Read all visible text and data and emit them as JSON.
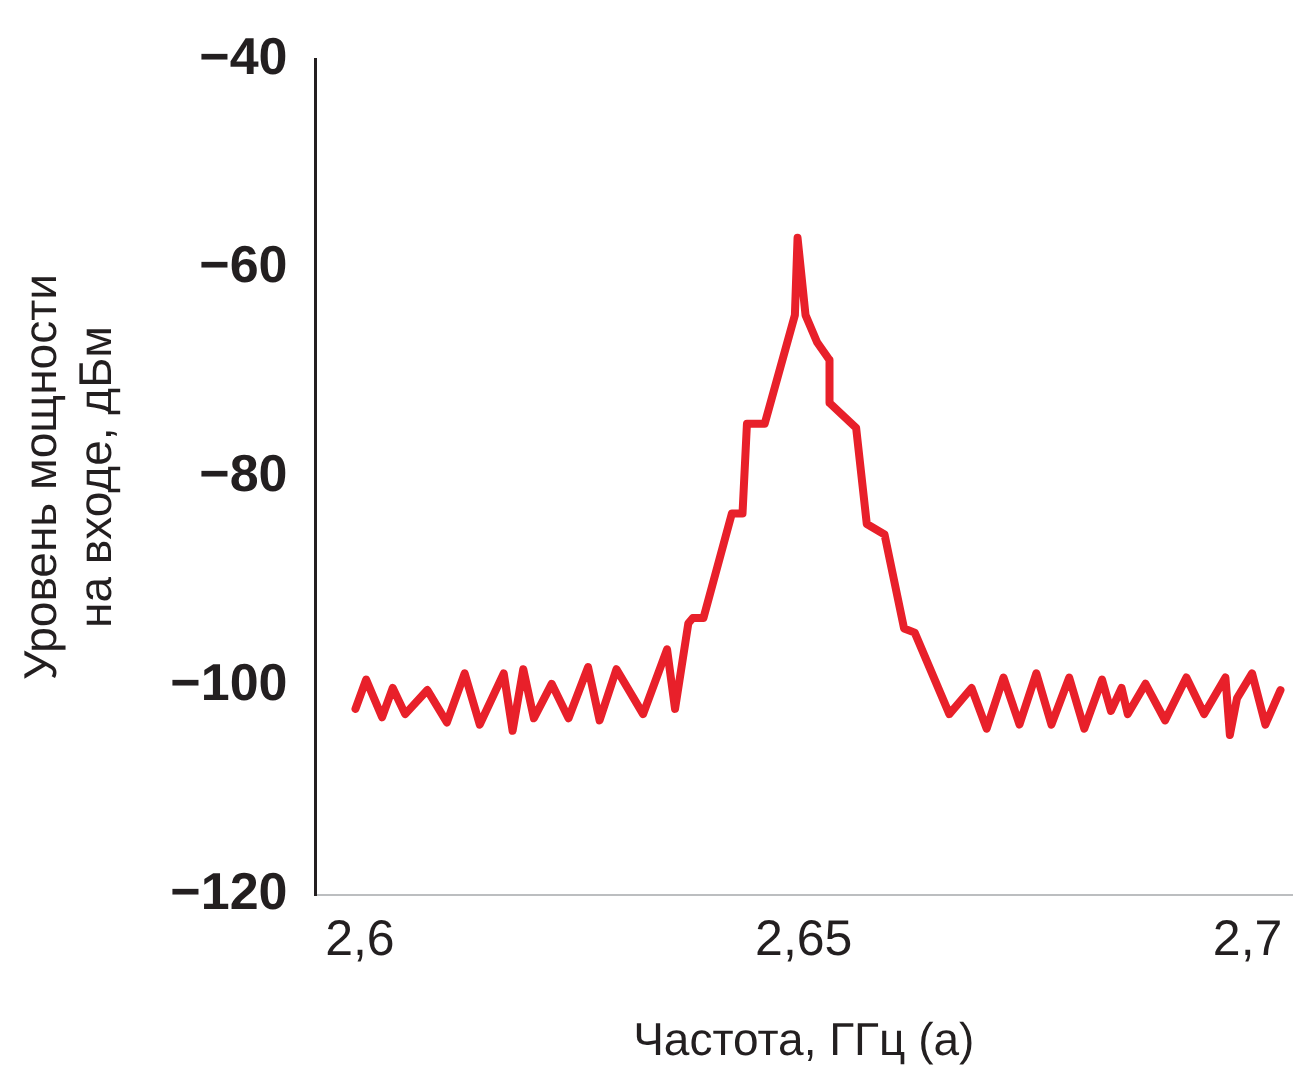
{
  "chart_data": {
    "type": "line",
    "xlabel": "Частота, ГГц (а)",
    "ylabel": "Уровень мощности\nна входе, дБм",
    "xlim": [
      2.595,
      2.705
    ],
    "ylim": [
      -120,
      -40
    ],
    "xticks": [
      {
        "value": 2.6,
        "label": "2,6"
      },
      {
        "value": 2.65,
        "label": "2,65"
      },
      {
        "value": 2.7,
        "label": "2,7"
      }
    ],
    "yticks": [
      {
        "value": -120,
        "label": "−120"
      },
      {
        "value": -100,
        "label": "−100"
      },
      {
        "value": -80,
        "label": "−80"
      },
      {
        "value": -60,
        "label": "−60"
      },
      {
        "value": -40,
        "label": "−40"
      }
    ],
    "grid": false,
    "legend": false,
    "marker": "none",
    "line_style": "solid",
    "series": [
      {
        "color": "#e8202a",
        "x": [
          2.5995,
          2.6007,
          2.6025,
          2.6037,
          2.6051,
          2.6076,
          2.6098,
          2.6118,
          2.6135,
          2.6162,
          2.6172,
          2.6184,
          2.6196,
          2.6216,
          2.6235,
          2.6257,
          2.627,
          2.6289,
          2.6319,
          2.6346,
          2.6355,
          2.637,
          2.6375,
          2.6387,
          2.6419,
          2.6431,
          2.6436,
          2.6456,
          2.649,
          2.6493,
          2.6502,
          2.6515,
          2.6529,
          2.6529,
          2.6559,
          2.6571,
          2.6591,
          2.6613,
          2.6625,
          2.6664,
          2.6689,
          2.6706,
          2.6725,
          2.6743,
          2.6762,
          2.6779,
          2.6799,
          2.6816,
          2.6836,
          2.6846,
          2.6858,
          2.6865,
          2.6885,
          2.6907,
          2.6931,
          2.6951,
          2.6975,
          2.698,
          2.6988,
          2.7005,
          2.702,
          2.7037
        ],
        "values": [
          -102.2,
          -99.4,
          -103,
          -100.2,
          -102.7,
          -100.4,
          -103.5,
          -98.8,
          -103.7,
          -98.8,
          -104.3,
          -98.4,
          -103.1,
          -99.8,
          -103.1,
          -98.2,
          -103.3,
          -98.4,
          -102.7,
          -96.5,
          -102.2,
          -94,
          -93.5,
          -93.5,
          -83.5,
          -83.5,
          -74.9,
          -74.9,
          -64.5,
          -57.1,
          -64.5,
          -67.1,
          -68.8,
          -72.9,
          -75.3,
          -84.5,
          -85.5,
          -94.5,
          -94.9,
          -102.7,
          -100.2,
          -104.1,
          -99.2,
          -103.7,
          -98.8,
          -103.7,
          -99.2,
          -104.1,
          -99.4,
          -102.4,
          -100.2,
          -102.7,
          -99.8,
          -103.3,
          -99.2,
          -102.7,
          -99.2,
          -104.7,
          -101.2,
          -98.8,
          -103.7,
          -100.4
        ]
      }
    ]
  }
}
